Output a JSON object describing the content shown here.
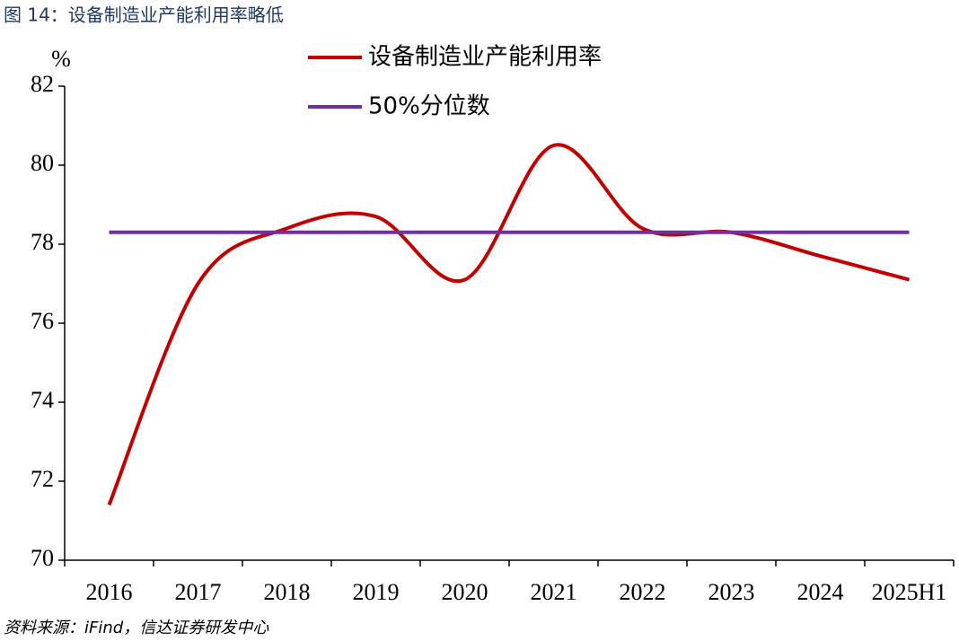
{
  "chart_data": {
    "type": "line",
    "title": "图 14：设备制造业产能利用率略低",
    "y_label": "%",
    "source": "资料来源：iFind，信达证券研发中心",
    "categories": [
      "2016",
      "2017",
      "2018",
      "2019",
      "2020",
      "2021",
      "2022",
      "2023",
      "2024",
      "2025H1"
    ],
    "series": [
      {
        "name": "设备制造业产能利用率",
        "color": "#c00000",
        "values": [
          71.4,
          77.0,
          78.4,
          78.7,
          77.1,
          80.5,
          78.4,
          78.3,
          77.7,
          77.1
        ]
      },
      {
        "name": "50%分位数",
        "color": "#7030a0",
        "values": [
          78.3,
          78.3,
          78.3,
          78.3,
          78.3,
          78.3,
          78.3,
          78.3,
          78.3,
          78.3
        ]
      }
    ],
    "ylim": [
      70,
      82
    ],
    "yticks": [
      70,
      72,
      74,
      76,
      78,
      80,
      82
    ],
    "smooth": true
  }
}
